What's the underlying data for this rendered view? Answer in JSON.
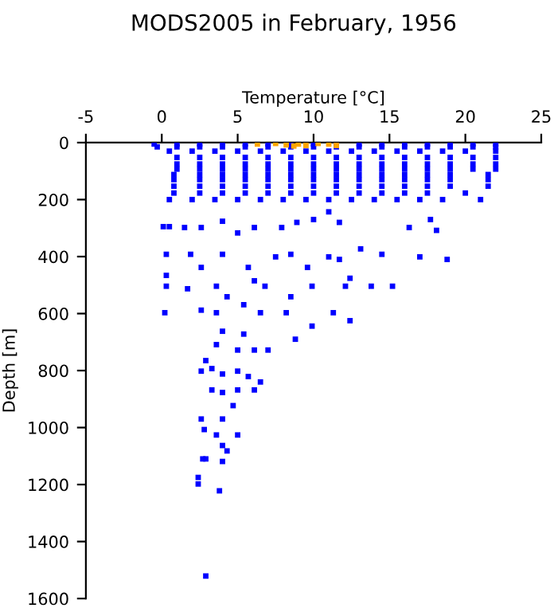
{
  "chart_data": {
    "type": "scatter",
    "title": "MODS2005 in February, 1956",
    "xlabel": "Temperature [°C]",
    "ylabel": "Depth [m]",
    "xlim": [
      -5,
      25
    ],
    "xticks": [
      -5,
      0,
      5,
      10,
      15,
      20,
      25
    ],
    "ylim": [
      1600,
      0
    ],
    "yticks": [
      0,
      200,
      400,
      600,
      800,
      1000,
      1200,
      1400,
      1600
    ],
    "grid": false,
    "marker": "square",
    "series": [
      {
        "color": "#0000ff",
        "x": [
          -0.5,
          1,
          2.5,
          4,
          5.5,
          7,
          8.5,
          10,
          11.5,
          13,
          14.5,
          16,
          17.5,
          19,
          20.5,
          22,
          -0.3,
          1,
          2.5,
          4,
          5.5,
          7,
          8.5,
          10,
          11.5,
          13,
          14.5,
          16,
          17.5,
          19,
          20.5,
          22,
          0.5,
          2,
          3.5,
          5,
          6.5,
          8,
          9.5,
          11,
          12.5,
          14,
          15.5,
          17,
          18.5,
          20,
          22,
          1,
          2.5,
          4,
          5.5,
          7,
          8.5,
          10,
          11.5,
          13,
          14.5,
          16,
          17.5,
          19,
          20.5,
          22,
          1,
          2.5,
          4,
          5.5,
          7,
          8.5,
          10,
          11.5,
          13,
          14.5,
          16,
          17.5,
          19,
          20.5,
          22,
          1,
          2.5,
          4,
          5.5,
          7,
          8.5,
          10,
          11.5,
          13,
          14.5,
          16,
          17.5,
          19,
          20.5,
          22,
          0.8,
          2.5,
          4,
          5.5,
          7,
          8.5,
          10,
          11.5,
          13,
          14.5,
          16,
          17.5,
          19,
          21.5,
          0.8,
          2.5,
          4,
          5.5,
          7,
          8.5,
          10,
          11.5,
          13,
          14.5,
          16,
          17.5,
          19,
          21.5,
          0.8,
          2.5,
          4,
          5.5,
          7,
          8.5,
          10,
          11.5,
          13,
          14.5,
          16,
          17.5,
          19,
          21.5,
          0.8,
          2.5,
          4,
          5.5,
          7,
          8.5,
          10,
          11.5,
          13,
          14.5,
          16,
          17.5,
          20,
          0.5,
          2,
          3.5,
          5,
          6.5,
          8,
          9.5,
          11,
          12.5,
          14,
          15.5,
          17,
          18.5,
          21,
          0.1,
          0.5,
          1.5,
          2.6,
          4.0,
          5.0,
          6.1,
          7.9,
          8.9,
          10,
          11,
          11.7,
          16.3,
          18.1,
          17.7,
          0.3,
          1.9,
          4,
          2.6,
          5.7,
          7.5,
          8.5,
          11,
          13.1,
          14.5,
          17,
          18.8,
          11.7,
          9.6,
          0.3,
          0.3,
          1.7,
          3.6,
          4.3,
          6.1,
          6.8,
          8.5,
          9.9,
          12.1,
          13.8,
          15.2,
          12.4,
          0.2,
          2.6,
          3.6,
          5.4,
          6.5,
          8.2,
          9.9,
          11.3,
          12.4,
          4,
          5.4,
          3.6,
          5,
          6.1,
          2.9,
          2.6,
          3.3,
          4,
          5,
          6.5,
          5.7,
          7,
          8.8,
          3.3,
          4,
          4.7,
          5,
          6.1,
          2.6,
          2.8,
          4,
          3.6,
          5,
          4,
          2.9,
          4,
          2.7,
          2.4,
          2.4,
          3.8,
          2.9,
          4.3
        ],
        "values": [
          5,
          5,
          5,
          5,
          5,
          5,
          5,
          5,
          5,
          5,
          5,
          5,
          5,
          5,
          5,
          5,
          15,
          15,
          15,
          15,
          15,
          15,
          15,
          15,
          15,
          15,
          15,
          15,
          15,
          15,
          15,
          15,
          30,
          30,
          30,
          30,
          30,
          30,
          30,
          30,
          30,
          30,
          30,
          30,
          30,
          30,
          30,
          52,
          52,
          52,
          52,
          52,
          52,
          52,
          52,
          52,
          52,
          52,
          52,
          52,
          52,
          52,
          75,
          75,
          75,
          75,
          75,
          75,
          75,
          75,
          75,
          75,
          75,
          75,
          75,
          75,
          75,
          93,
          93,
          93,
          93,
          93,
          93,
          93,
          93,
          93,
          93,
          93,
          93,
          93,
          93,
          93,
          112,
          112,
          112,
          112,
          112,
          112,
          112,
          112,
          112,
          112,
          112,
          112,
          112,
          112,
          130,
          130,
          130,
          130,
          130,
          130,
          130,
          130,
          130,
          130,
          130,
          130,
          130,
          130,
          153,
          153,
          153,
          153,
          153,
          153,
          153,
          153,
          153,
          153,
          153,
          153,
          153,
          153,
          177,
          177,
          177,
          177,
          177,
          177,
          177,
          177,
          177,
          177,
          177,
          177,
          177,
          200,
          200,
          200,
          200,
          200,
          200,
          200,
          200,
          200,
          200,
          200,
          200,
          200,
          200,
          295,
          295,
          298,
          298,
          276,
          317,
          298,
          298,
          280,
          270,
          243,
          280,
          298,
          308,
          270,
          392,
          392,
          392,
          438,
          438,
          401,
          392,
          401,
          373,
          392,
          401,
          410,
          410,
          438,
          466,
          504,
          513,
          504,
          541,
          485,
          504,
          541,
          504,
          504,
          504,
          504,
          476,
          597,
          588,
          597,
          569,
          597,
          597,
          644,
          597,
          625,
          662,
          672,
          709,
          728,
          728,
          765,
          802,
          793,
          812,
          802,
          840,
          821,
          728,
          690,
          868,
          877,
          923,
          868,
          868,
          970,
          1007,
          970,
          1026,
          1026,
          1063,
          1110,
          1119,
          1110,
          1175,
          1198,
          1222,
          1521,
          1082
        ]
      },
      {
        "color": "#ffa500",
        "x": [
          6.3,
          7.5,
          8.2,
          8.7,
          9,
          9.5,
          10.3,
          11,
          11.5
        ],
        "values": [
          5,
          3,
          8,
          12,
          5,
          10,
          3,
          5,
          10
        ]
      }
    ]
  }
}
